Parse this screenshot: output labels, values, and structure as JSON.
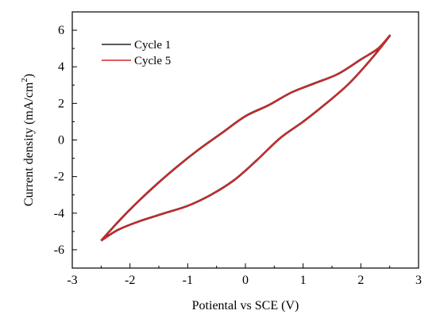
{
  "chart_data": {
    "type": "line",
    "title": "",
    "xlabel": "Potiental vs SCE (V)",
    "ylabel_main": "Current density (mA/cm",
    "ylabel_sup": "2",
    "ylabel_end": ")",
    "xlim": [
      -3,
      3
    ],
    "ylim": [
      -7,
      7
    ],
    "xticks": [
      -3,
      -2,
      -1,
      0,
      1,
      2,
      3
    ],
    "yticks": [
      -6,
      -4,
      -2,
      0,
      2,
      4,
      6
    ],
    "legend_position": "top-left",
    "grid": false,
    "series": [
      {
        "name": "Cycle 1",
        "color": "#222222",
        "x": [
          -2.5,
          -2.2,
          -1.8,
          -1.4,
          -1.0,
          -0.6,
          -0.2,
          0.2,
          0.6,
          1.0,
          1.4,
          1.8,
          2.2,
          2.5,
          2.3,
          2.0,
          1.6,
          1.2,
          0.8,
          0.4,
          0.0,
          -0.4,
          -0.8,
          -1.2,
          -1.6,
          -2.0,
          -2.3,
          -2.5
        ],
        "y": [
          -5.5,
          -4.9,
          -4.4,
          -4.0,
          -3.6,
          -3.0,
          -2.2,
          -1.1,
          0.1,
          1.0,
          2.0,
          3.1,
          4.5,
          5.7,
          5.0,
          4.4,
          3.6,
          3.1,
          2.6,
          1.9,
          1.3,
          0.4,
          -0.5,
          -1.5,
          -2.6,
          -3.8,
          -4.8,
          -5.5
        ]
      },
      {
        "name": "Cycle 5",
        "color": "#d62728",
        "x": [
          -2.5,
          -2.2,
          -1.8,
          -1.4,
          -1.0,
          -0.6,
          -0.2,
          0.2,
          0.6,
          1.0,
          1.4,
          1.8,
          2.2,
          2.5,
          2.3,
          2.0,
          1.6,
          1.2,
          0.8,
          0.4,
          0.0,
          -0.4,
          -0.8,
          -1.2,
          -1.6,
          -2.0,
          -2.3,
          -2.5
        ],
        "y": [
          -5.5,
          -4.9,
          -4.4,
          -4.0,
          -3.6,
          -3.0,
          -2.2,
          -1.1,
          0.1,
          1.0,
          2.0,
          3.1,
          4.5,
          5.7,
          5.0,
          4.4,
          3.6,
          3.1,
          2.6,
          1.9,
          1.3,
          0.4,
          -0.5,
          -1.5,
          -2.6,
          -3.8,
          -4.8,
          -5.5
        ]
      }
    ]
  }
}
